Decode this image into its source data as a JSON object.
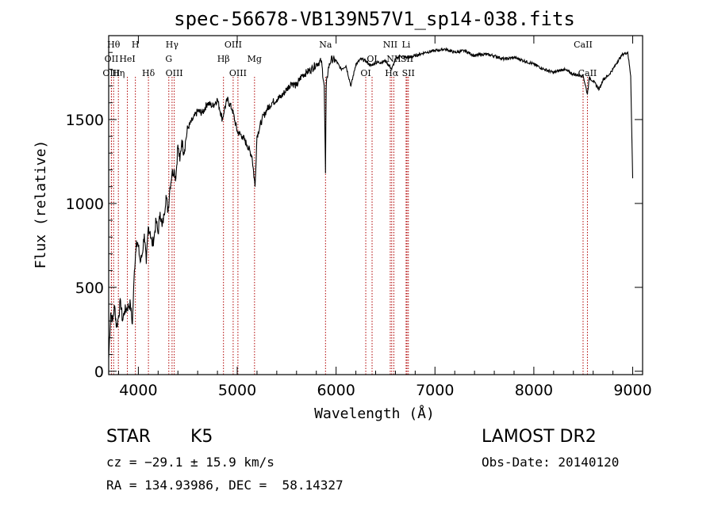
{
  "chart_data": {
    "type": "line",
    "title": "spec-56678-VB139N57V1_sp14-038.fits",
    "xlabel": "Wavelength (Å)",
    "ylabel": "Flux (relative)",
    "xlim": [
      3700,
      9100
    ],
    "ylim": [
      -20,
      2000
    ],
    "xticks": [
      4000,
      5000,
      6000,
      7000,
      8000,
      9000
    ],
    "yticks": [
      0,
      500,
      1000,
      1500
    ],
    "grid": false,
    "series": [
      {
        "x": [
          3700,
          3720,
          3740,
          3760,
          3780,
          3800,
          3820,
          3840,
          3860,
          3880,
          3900,
          3920,
          3940,
          3960,
          3980,
          4000,
          4020,
          4040,
          4060,
          4080,
          4100,
          4120,
          4140,
          4160,
          4180,
          4200,
          4220,
          4240,
          4260,
          4280,
          4300,
          4320,
          4340,
          4360,
          4380,
          4400,
          4420,
          4440,
          4460,
          4480,
          4500,
          4550,
          4600,
          4650,
          4700,
          4750,
          4800,
          4850,
          4870,
          4900,
          4950,
          5000,
          5050,
          5100,
          5150,
          5180,
          5200,
          5250,
          5300,
          5350,
          5400,
          5450,
          5500,
          5550,
          5600,
          5650,
          5700,
          5750,
          5800,
          5850,
          5880,
          5893,
          5900,
          5920,
          5950,
          6000,
          6050,
          6100,
          6150,
          6200,
          6250,
          6300,
          6350,
          6400,
          6450,
          6500,
          6563,
          6600,
          6650,
          6700,
          6750,
          6800,
          6900,
          7000,
          7100,
          7200,
          7300,
          7400,
          7500,
          7600,
          7700,
          7800,
          7900,
          8000,
          8100,
          8200,
          8300,
          8400,
          8500,
          8542,
          8560,
          8600,
          8662,
          8700,
          8750,
          8800,
          8850,
          8900,
          8950,
          8980,
          9000
        ],
        "y": [
          80,
          350,
          300,
          390,
          260,
          330,
          420,
          300,
          360,
          370,
          390,
          400,
          280,
          600,
          780,
          740,
          650,
          700,
          820,
          640,
          860,
          830,
          750,
          800,
          900,
          820,
          950,
          860,
          930,
          1050,
          950,
          1100,
          1180,
          1200,
          1150,
          1350,
          1250,
          1380,
          1300,
          1380,
          1450,
          1500,
          1550,
          1540,
          1600,
          1580,
          1620,
          1500,
          1560,
          1620,
          1560,
          1430,
          1400,
          1350,
          1280,
          1100,
          1400,
          1500,
          1560,
          1600,
          1620,
          1640,
          1680,
          1720,
          1700,
          1760,
          1780,
          1800,
          1830,
          1850,
          1700,
          1180,
          1700,
          1800,
          1860,
          1850,
          1800,
          1820,
          1700,
          1830,
          1860,
          1850,
          1820,
          1840,
          1840,
          1850,
          1800,
          1860,
          1880,
          1870,
          1870,
          1880,
          1900,
          1910,
          1920,
          1900,
          1910,
          1880,
          1890,
          1880,
          1860,
          1870,
          1850,
          1830,
          1800,
          1780,
          1800,
          1770,
          1760,
          1650,
          1750,
          1730,
          1680,
          1740,
          1760,
          1800,
          1850,
          1890,
          1900,
          1760,
          1150
        ]
      }
    ],
    "lines": [
      {
        "lambda": 3750,
        "label": "Hθ",
        "row": 0
      },
      {
        "lambda": 3728,
        "label": "OII",
        "row": 1
      },
      {
        "lambda": 3727,
        "label": "OIII",
        "row": 2
      },
      {
        "lambda": 3798,
        "label": "Hη",
        "row": 2
      },
      {
        "lambda": 3889,
        "label": "HeI",
        "row": 1
      },
      {
        "lambda": 3970,
        "label": "H",
        "row": 0
      },
      {
        "lambda": 4102,
        "label": "Hδ",
        "row": 2
      },
      {
        "lambda": 4341,
        "label": "Hγ",
        "row": 0
      },
      {
        "lambda": 4308,
        "label": "G",
        "row": 1
      },
      {
        "lambda": 4363,
        "label": "OIII",
        "row": 2
      },
      {
        "lambda": 4861,
        "label": "Hβ",
        "row": 1
      },
      {
        "lambda": 4959,
        "label": "OIII",
        "row": 0
      },
      {
        "lambda": 5007,
        "label": "OIII",
        "row": 2
      },
      {
        "lambda": 5175,
        "label": "Mg",
        "row": 1
      },
      {
        "lambda": 5893,
        "label": "Na",
        "row": 0
      },
      {
        "lambda": 6300,
        "label": "OI",
        "row": 2
      },
      {
        "lambda": 6364,
        "label": "OI",
        "row": 1
      },
      {
        "lambda": 6548,
        "label": "NII",
        "row": 0
      },
      {
        "lambda": 6563,
        "label": "Hα",
        "row": 2
      },
      {
        "lambda": 6584,
        "label": "NII",
        "row": 1
      },
      {
        "lambda": 6708,
        "label": "Li",
        "row": 0
      },
      {
        "lambda": 6717,
        "label": "SII",
        "row": 1
      },
      {
        "lambda": 6731,
        "label": "SII",
        "row": 2
      },
      {
        "lambda": 8498,
        "label": "CaII",
        "row": 0
      },
      {
        "lambda": 8542,
        "label": "CaII",
        "row": 2
      }
    ],
    "annotations": {
      "class": "STAR",
      "subclass": "K5",
      "survey": "LAMOST DR2",
      "cz": "cz = −29.1 ± 15.9 km/s",
      "obs_date": "Obs-Date: 20140120",
      "radec": "RA = 134.93986, DEC =  58.14327"
    }
  }
}
